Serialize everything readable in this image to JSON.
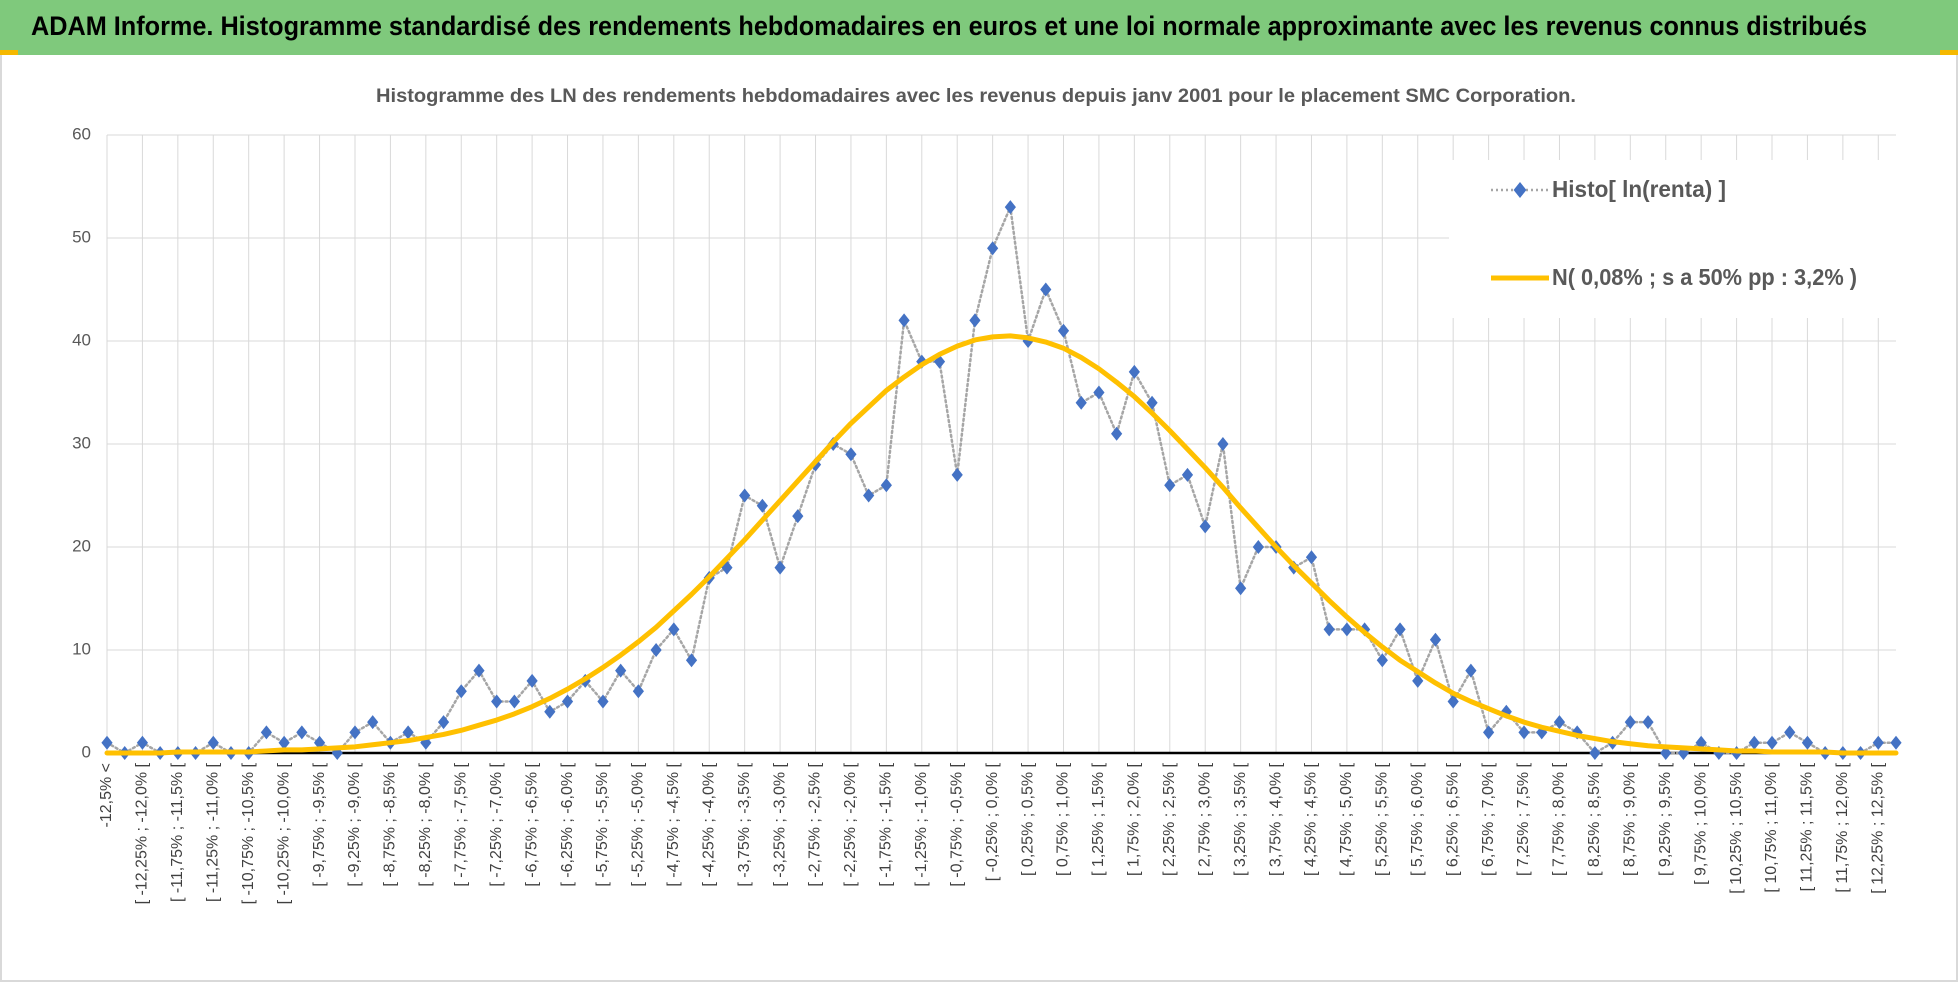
{
  "header": {
    "title": "ADAM Informe. Histogramme standardisé des rendements hebdomadaires en euros et une loi normale approximante avec les revenus connus distribués"
  },
  "chart_data": {
    "type": "line",
    "title": "Histogramme  des LN des rendements hebdomadaires avec les revenus depuis janv 2001 pour le placement SMC Corporation.",
    "categories": [
      "-12,5% <",
      null,
      "[ -12,25% ; -12,0% [",
      null,
      "[ -11,75% ; -11,5% [",
      null,
      "[ -11,25% ; -11,0% [",
      null,
      "[ -10,75% ; -10,5% [",
      null,
      "[ -10,25% ; -10,0% [",
      null,
      "[ -9,75% ; -9,5% [",
      null,
      "[ -9,25% ; -9,0% [",
      null,
      "[ -8,75% ; -8,5% [",
      null,
      "[ -8,25% ; -8,0% [",
      null,
      "[ -7,75% ; -7,5% [",
      null,
      "[ -7,25% ; -7,0% [",
      null,
      "[ -6,75% ; -6,5% [",
      null,
      "[ -6,25% ; -6,0% [",
      null,
      "[ -5,75% ; -5,5% [",
      null,
      "[ -5,25% ; -5,0% [",
      null,
      "[ -4,75% ; -4,5% [",
      null,
      "[ -4,25% ; -4,0% [",
      null,
      "[ -3,75% ; -3,5% [",
      null,
      "[ -3,25% ; -3,0% [",
      null,
      "[ -2,75% ; -2,5% [",
      null,
      "[ -2,25% ; -2,0% [",
      null,
      "[ -1,75% ; -1,5% [",
      null,
      "[ -1,25% ; -1,0% [",
      null,
      "[ -0,75% ; -0,5% [",
      null,
      "[ -0,25% ; 0,0% [",
      null,
      "[ 0,25% ; 0,5% [",
      null,
      "[ 0,75% ; 1,0% [",
      null,
      "[ 1,25% ; 1,5% [",
      null,
      "[ 1,75% ; 2,0% [",
      null,
      "[ 2,25% ; 2,5% [",
      null,
      "[ 2,75% ; 3,0% [",
      null,
      "[ 3,25% ; 3,5% [",
      null,
      "[ 3,75% ; 4,0% [",
      null,
      "[ 4,25% ; 4,5% [",
      null,
      "[ 4,75% ; 5,0% [",
      null,
      "[ 5,25% ; 5,5% [",
      null,
      "[ 5,75% ; 6,0% [",
      null,
      "[ 6,25% ; 6,5% [",
      null,
      "[ 6,75% ; 7,0% [",
      null,
      "[ 7,25% ; 7,5% [",
      null,
      "[ 7,75% ; 8,0% [",
      null,
      "[ 8,25% ; 8,5% [",
      null,
      "[ 8,75% ; 9,0% [",
      null,
      "[ 9,25% ; 9,5% [",
      null,
      "[ 9,75% ; 10,0% [",
      null,
      "[ 10,25% ; 10,5% [",
      null,
      "[ 10,75% ; 11,0% [",
      null,
      "[ 11,25% ; 11,5% [",
      null,
      "[ 11,75% ; 12,0% [",
      null,
      "[ 12,25% ; 12,5% [",
      null
    ],
    "series": [
      {
        "name": "Histo[ ln(renta) ]",
        "color": "#4472c4",
        "line_color": "#a6a6a6",
        "line_style": "dotted",
        "marker": "diamond",
        "values": [
          1,
          0,
          1,
          0,
          0,
          0,
          1,
          0,
          0,
          2,
          1,
          2,
          1,
          0,
          2,
          3,
          1,
          2,
          1,
          3,
          6,
          8,
          5,
          5,
          7,
          4,
          5,
          7,
          5,
          8,
          6,
          10,
          12,
          9,
          17,
          18,
          25,
          24,
          18,
          23,
          28,
          30,
          29,
          25,
          26,
          42,
          38,
          38,
          27,
          42,
          49,
          53,
          40,
          45,
          41,
          34,
          35,
          31,
          37,
          34,
          26,
          27,
          22,
          30,
          16,
          20,
          20,
          18,
          19,
          12,
          12,
          12,
          9,
          12,
          7,
          11,
          5,
          8,
          2,
          4,
          2,
          2,
          3,
          2,
          0,
          1,
          3,
          3,
          0,
          0,
          1,
          0,
          0,
          1,
          1,
          2,
          1,
          0,
          0,
          0,
          1,
          1
        ]
      },
      {
        "name": "N( 0,08% ; s a 50% pp : 3,2% )",
        "color": "#ffc000",
        "line_style": "solid",
        "marker": "none",
        "values": [
          0,
          0,
          0,
          0,
          0.1,
          0.1,
          0.1,
          0.1,
          0.1,
          0.2,
          0.3,
          0.3,
          0.4,
          0.5,
          0.6,
          0.8,
          1.0,
          1.2,
          1.5,
          1.8,
          2.2,
          2.7,
          3.2,
          3.8,
          4.5,
          5.3,
          6.2,
          7.2,
          8.3,
          9.5,
          10.8,
          12.2,
          13.8,
          15.4,
          17.1,
          18.9,
          20.7,
          22.6,
          24.5,
          26.4,
          28.3,
          30.2,
          32.0,
          33.6,
          35.2,
          36.5,
          37.7,
          38.7,
          39.5,
          40.1,
          40.4,
          40.5,
          40.3,
          39.9,
          39.3,
          38.4,
          37.3,
          36.0,
          34.6,
          33.0,
          31.3,
          29.5,
          27.7,
          25.8,
          23.8,
          21.9,
          20.0,
          18.2,
          16.5,
          14.8,
          13.2,
          11.7,
          10.3,
          9.0,
          7.9,
          6.8,
          5.8,
          5.0,
          4.3,
          3.6,
          3.0,
          2.5,
          2.1,
          1.7,
          1.4,
          1.1,
          0.9,
          0.7,
          0.6,
          0.5,
          0.4,
          0.3,
          0.2,
          0.2,
          0.1,
          0.1,
          0.1,
          0.1,
          0,
          0,
          0,
          0
        ]
      }
    ],
    "ylim": [
      0,
      60
    ],
    "yticks": [
      0,
      10,
      20,
      30,
      40,
      50,
      60
    ],
    "grid": true,
    "legend": "upper right"
  }
}
